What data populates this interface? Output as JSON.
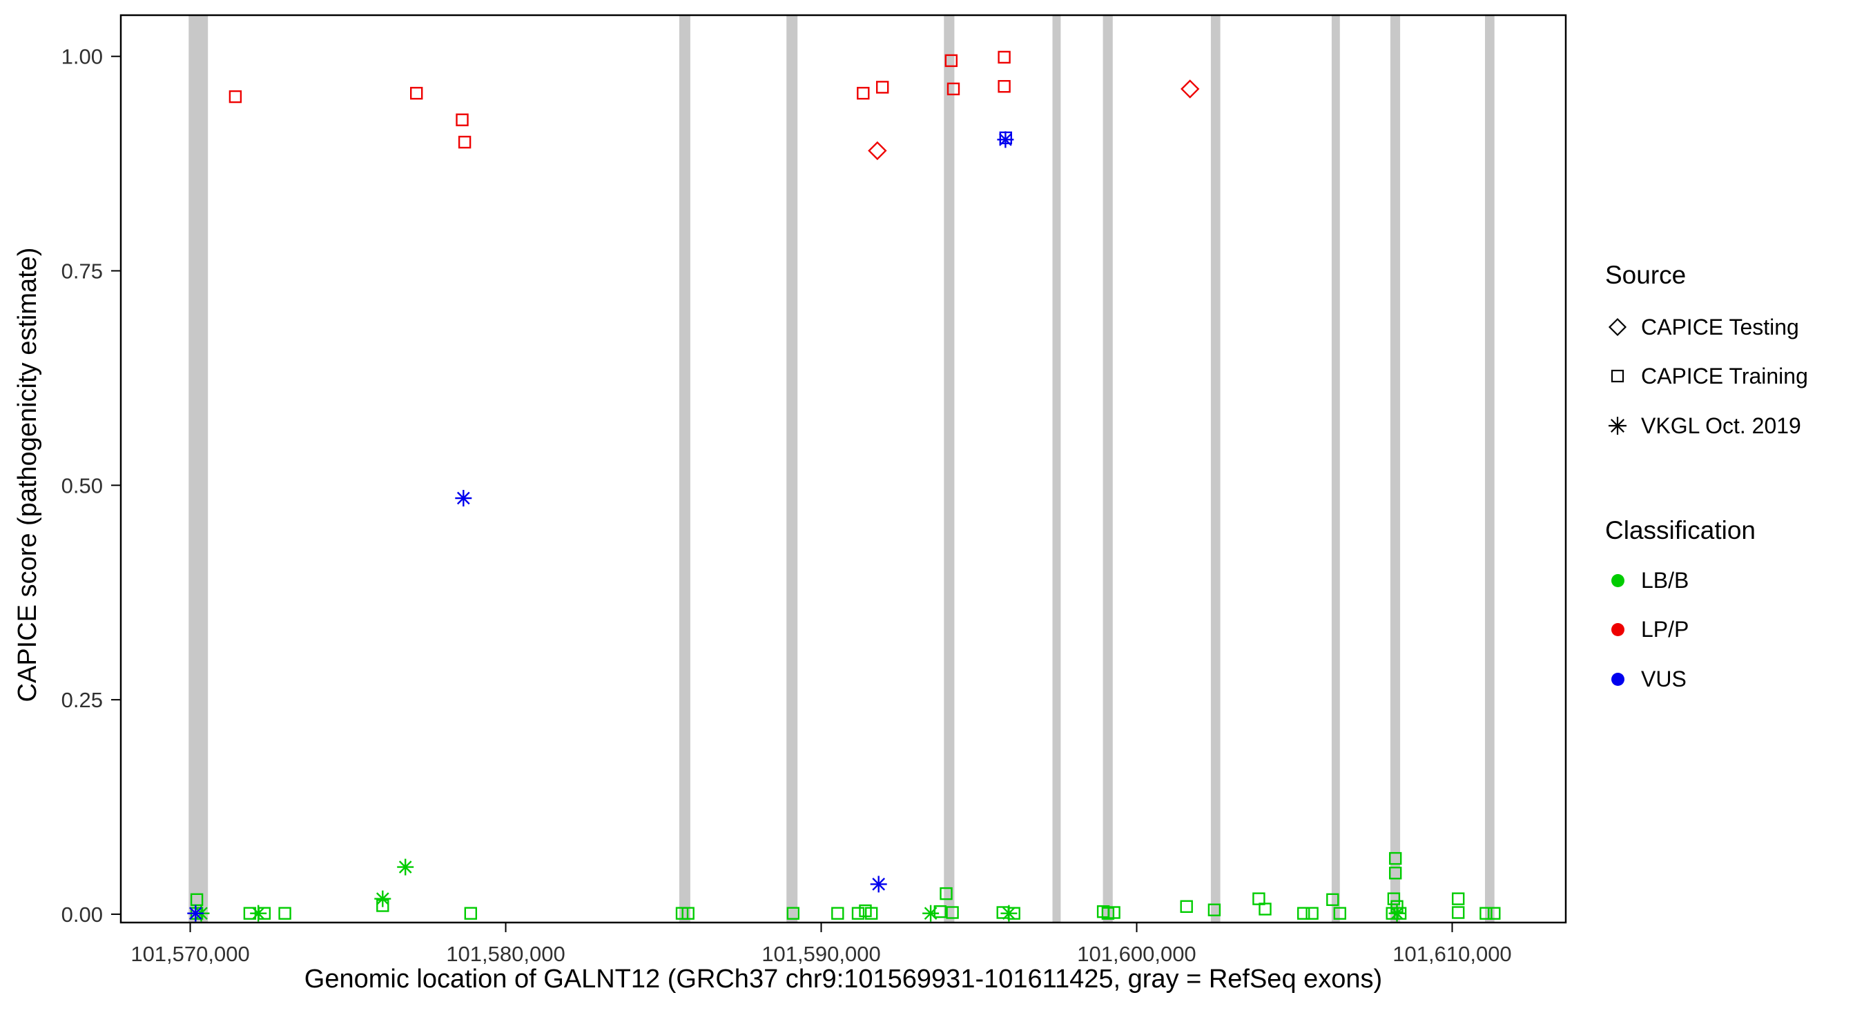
{
  "chart_data": {
    "type": "scatter",
    "title": "",
    "xlabel": "Genomic location of GALNT12 (GRCh37 chr9:101569931-101611425, gray = RefSeq exons)",
    "ylabel": "CAPICE score (pathogenicity estimate)",
    "xlim": [
      101567800,
      101613600
    ],
    "ylim": [
      -0.0097,
      1.048
    ],
    "grid": "off",
    "legend_position": "right",
    "x_ticks": {
      "values": [
        101570000,
        101580000,
        101590000,
        101600000,
        101610000
      ],
      "labels": [
        "101,570,000",
        "101,580,000",
        "101,590,000",
        "101,600,000",
        "101,610,000"
      ]
    },
    "y_ticks": {
      "values": [
        0,
        0.25,
        0.5,
        0.75,
        1.0
      ],
      "labels": [
        "0.00",
        "0.25",
        "0.50",
        "0.75",
        "1.00"
      ]
    },
    "exon_color": "#C8C8C8",
    "exons": [
      [
        101569950,
        101570560
      ],
      [
        101585500,
        101585850
      ],
      [
        101588900,
        101589250
      ],
      [
        101593890,
        101594220
      ],
      [
        101597330,
        101597590
      ],
      [
        101598930,
        101599240
      ],
      [
        101602350,
        101602650
      ],
      [
        101606180,
        101606440
      ],
      [
        101608040,
        101608350
      ],
      [
        101611040,
        101611340
      ]
    ],
    "colors": {
      "LB/B": "#00CC00",
      "LP/P": "#EE0000",
      "VUS": "#0000EE"
    },
    "series": [
      {
        "name": "CAPICE Testing - LP/P",
        "source": "CAPICE Testing",
        "classification": "LP/P",
        "shape": "diamond",
        "points": [
          [
            101591780,
            0.89
          ],
          [
            101601690,
            0.962
          ]
        ]
      },
      {
        "name": "CAPICE Training - LP/P",
        "source": "CAPICE Training",
        "classification": "LP/P",
        "shape": "square",
        "points": [
          [
            101571430,
            0.953
          ],
          [
            101577170,
            0.957
          ],
          [
            101578620,
            0.926
          ],
          [
            101578700,
            0.9
          ],
          [
            101591330,
            0.957
          ],
          [
            101591940,
            0.964
          ],
          [
            101594120,
            0.995
          ],
          [
            101594190,
            0.962
          ],
          [
            101595800,
            0.999
          ],
          [
            101595800,
            0.965
          ]
        ]
      },
      {
        "name": "CAPICE Training - VUS",
        "source": "CAPICE Training",
        "classification": "VUS",
        "shape": "square",
        "points": [
          [
            101595850,
            0.905
          ]
        ]
      },
      {
        "name": "CAPICE Training - LB/B",
        "source": "CAPICE Training",
        "classification": "LB/B",
        "shape": "square",
        "points": [
          [
            101570210,
            0.017
          ],
          [
            101570210,
            0.001
          ],
          [
            101571890,
            0.001
          ],
          [
            101572350,
            0.001
          ],
          [
            101573000,
            0.001
          ],
          [
            101576100,
            0.01
          ],
          [
            101578890,
            0.001
          ],
          [
            101585590,
            0.001
          ],
          [
            101585780,
            0.001
          ],
          [
            101589110,
            0.001
          ],
          [
            101590520,
            0.001
          ],
          [
            101591170,
            0.001
          ],
          [
            101591400,
            0.004
          ],
          [
            101591590,
            0.001
          ],
          [
            101593770,
            0.003
          ],
          [
            101593960,
            0.024
          ],
          [
            101594160,
            0.002
          ],
          [
            101595760,
            0.002
          ],
          [
            101596110,
            0.001
          ],
          [
            101598940,
            0.003
          ],
          [
            101599090,
            0.001
          ],
          [
            101599280,
            0.002
          ],
          [
            101601580,
            0.009
          ],
          [
            101602460,
            0.005
          ],
          [
            101603870,
            0.018
          ],
          [
            101604070,
            0.006
          ],
          [
            101605290,
            0.001
          ],
          [
            101605560,
            0.001
          ],
          [
            101606210,
            0.017
          ],
          [
            101606440,
            0.001
          ],
          [
            101608200,
            0.065
          ],
          [
            101608200,
            0.048
          ],
          [
            101608150,
            0.018
          ],
          [
            101608250,
            0.009
          ],
          [
            101608100,
            0.001
          ],
          [
            101608350,
            0.001
          ],
          [
            101610190,
            0.018
          ],
          [
            101610190,
            0.002
          ],
          [
            101611070,
            0.001
          ],
          [
            101611330,
            0.001
          ]
        ]
      },
      {
        "name": "VKGL Oct. 2019 - LB/B",
        "source": "VKGL Oct. 2019",
        "classification": "LB/B",
        "shape": "asterisk",
        "points": [
          [
            101570350,
            0.001
          ],
          [
            101572160,
            0.001
          ],
          [
            101576100,
            0.018
          ],
          [
            101576820,
            0.055
          ],
          [
            101593470,
            0.001
          ],
          [
            101595950,
            0.001
          ],
          [
            101608250,
            0.001
          ]
        ]
      },
      {
        "name": "VKGL Oct. 2019 - VUS",
        "source": "VKGL Oct. 2019",
        "classification": "VUS",
        "shape": "asterisk",
        "points": [
          [
            101570170,
            0.001
          ],
          [
            101578660,
            0.485
          ],
          [
            101591820,
            0.035
          ],
          [
            101595840,
            0.903
          ]
        ]
      }
    ]
  },
  "legend": {
    "source": {
      "title": "Source",
      "items": [
        {
          "label": "CAPICE Testing",
          "shape": "diamond"
        },
        {
          "label": "CAPICE Training",
          "shape": "square"
        },
        {
          "label": "VKGL Oct. 2019",
          "shape": "asterisk"
        }
      ]
    },
    "classification": {
      "title": "Classification",
      "items": [
        {
          "label": "LB/B",
          "color": "#00CC00"
        },
        {
          "label": "LP/P",
          "color": "#EE0000"
        },
        {
          "label": "VUS",
          "color": "#0000EE"
        }
      ]
    }
  }
}
